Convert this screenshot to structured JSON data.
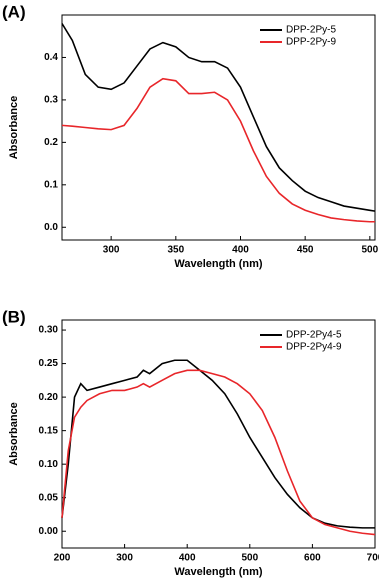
{
  "chart_data": [
    {
      "type": "line",
      "panel_label": "(A)",
      "xlabel": "Wavelength (nm)",
      "ylabel": "Absorbance",
      "x": [
        262,
        270,
        280,
        290,
        300,
        310,
        320,
        330,
        340,
        350,
        360,
        370,
        380,
        390,
        400,
        410,
        420,
        430,
        440,
        450,
        460,
        470,
        480,
        490,
        500,
        504
      ],
      "series": [
        {
          "name": "DPP-2Py-5",
          "color": "#000000",
          "values": [
            0.48,
            0.44,
            0.36,
            0.33,
            0.325,
            0.34,
            0.38,
            0.42,
            0.435,
            0.425,
            0.4,
            0.39,
            0.39,
            0.375,
            0.33,
            0.26,
            0.19,
            0.14,
            0.11,
            0.085,
            0.07,
            0.06,
            0.05,
            0.045,
            0.04,
            0.038
          ]
        },
        {
          "name": "DPP-2Py-9",
          "color": "#e8262a",
          "values": [
            0.24,
            0.238,
            0.235,
            0.232,
            0.23,
            0.24,
            0.28,
            0.33,
            0.35,
            0.345,
            0.315,
            0.315,
            0.318,
            0.3,
            0.25,
            0.18,
            0.12,
            0.08,
            0.055,
            0.04,
            0.03,
            0.022,
            0.018,
            0.015,
            0.013,
            0.013
          ]
        }
      ],
      "xlim": [
        262,
        504
      ],
      "xticks": [
        300,
        350,
        400,
        450,
        500
      ],
      "ylim": [
        -0.03,
        0.5
      ],
      "yticks": [
        {
          "value": 0,
          "label": "0.0"
        },
        {
          "value": 0.1,
          "label": "0.1"
        },
        {
          "value": 0.2,
          "label": "0.2"
        },
        {
          "value": 0.3,
          "label": "0.3"
        },
        {
          "value": 0.4,
          "label": "0.4"
        }
      ],
      "legend": "upper right"
    },
    {
      "type": "line",
      "panel_label": "(B)",
      "xlabel": "Wavelength (nm)",
      "ylabel": "Absorbance",
      "x": [
        200,
        210,
        220,
        230,
        240,
        260,
        280,
        300,
        320,
        330,
        340,
        360,
        380,
        400,
        420,
        440,
        460,
        480,
        500,
        520,
        540,
        560,
        580,
        600,
        620,
        640,
        660,
        680,
        700
      ],
      "series": [
        {
          "name": "DPP-2Py4-5",
          "color": "#000000",
          "values": [
            0.02,
            0.1,
            0.2,
            0.22,
            0.21,
            0.215,
            0.22,
            0.225,
            0.23,
            0.24,
            0.235,
            0.25,
            0.255,
            0.255,
            0.24,
            0.225,
            0.205,
            0.175,
            0.14,
            0.11,
            0.08,
            0.055,
            0.035,
            0.02,
            0.012,
            0.008,
            0.006,
            0.005,
            0.005
          ]
        },
        {
          "name": "DPP-2Py4-9",
          "color": "#e8262a",
          "values": [
            0.02,
            0.12,
            0.17,
            0.185,
            0.195,
            0.205,
            0.21,
            0.21,
            0.215,
            0.22,
            0.215,
            0.225,
            0.235,
            0.24,
            0.24,
            0.235,
            0.23,
            0.22,
            0.205,
            0.18,
            0.14,
            0.09,
            0.045,
            0.02,
            0.01,
            0.005,
            0,
            -0.003,
            -0.005
          ]
        }
      ],
      "xlim": [
        200,
        700
      ],
      "xticks": [
        200,
        300,
        400,
        500,
        600,
        700
      ],
      "ylim": [
        -0.025,
        0.315
      ],
      "yticks": [
        {
          "value": 0,
          "label": "0.00"
        },
        {
          "value": 0.05,
          "label": "0.05"
        },
        {
          "value": 0.1,
          "label": "0.10"
        },
        {
          "value": 0.15,
          "label": "0.15"
        },
        {
          "value": 0.2,
          "label": "0.20"
        },
        {
          "value": 0.25,
          "label": "0.25"
        },
        {
          "value": 0.3,
          "label": "0.30"
        }
      ],
      "legend": "upper right"
    }
  ]
}
